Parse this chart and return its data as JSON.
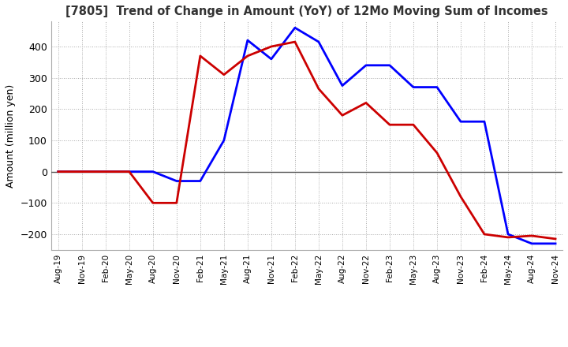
{
  "title": "[7805]  Trend of Change in Amount (YoY) of 12Mo Moving Sum of Incomes",
  "ylabel": "Amount (million yen)",
  "ylim": [
    -250,
    480
  ],
  "yticks": [
    -200,
    -100,
    0,
    100,
    200,
    300,
    400
  ],
  "background_color": "#ffffff",
  "plot_bg_color": "#ffffff",
  "grid_color": "#aaaaaa",
  "ordinary_income_color": "#0000ff",
  "net_income_color": "#cc0000",
  "line_width": 2.0,
  "x_labels": [
    "Aug-19",
    "Nov-19",
    "Feb-20",
    "May-20",
    "Aug-20",
    "Nov-20",
    "Feb-21",
    "May-21",
    "Aug-21",
    "Nov-21",
    "Feb-22",
    "May-22",
    "Aug-22",
    "Nov-22",
    "Feb-23",
    "May-23",
    "Aug-23",
    "Nov-23",
    "Feb-24",
    "May-24",
    "Aug-24",
    "Nov-24"
  ],
  "ordinary_income": [
    0,
    0,
    0,
    0,
    0,
    -30,
    -30,
    100,
    420,
    360,
    460,
    415,
    275,
    340,
    340,
    270,
    270,
    160,
    160,
    -200,
    -230,
    -230
  ],
  "net_income": [
    0,
    0,
    0,
    0,
    -100,
    -100,
    370,
    310,
    370,
    400,
    415,
    265,
    180,
    220,
    150,
    150,
    60,
    -80,
    -200,
    -210,
    -205,
    -215
  ]
}
